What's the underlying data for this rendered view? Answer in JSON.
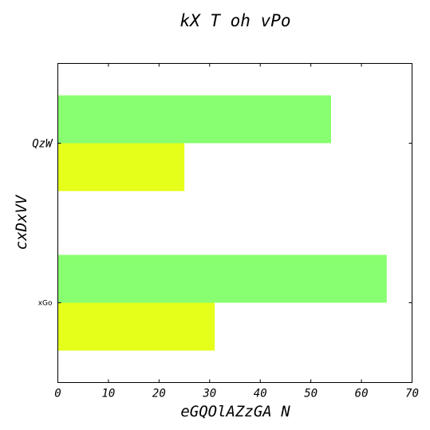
{
  "chart_data": {
    "type": "bar",
    "orientation": "horizontal",
    "title": "kX T oh vPo",
    "xlabel": "eGQOlAZzGA N",
    "ylabel": "cxDxVV",
    "categories": [
      "xGo",
      "QzW"
    ],
    "series": [
      {
        "values": [
          31,
          25
        ],
        "color": "#e5ff1a"
      },
      {
        "values": [
          65,
          54
        ],
        "color": "#88ff70"
      }
    ],
    "xlim": [
      0,
      70
    ],
    "xticks": [
      0,
      10,
      20,
      30,
      40,
      50,
      60,
      70
    ],
    "grid": false,
    "legend": "none"
  }
}
